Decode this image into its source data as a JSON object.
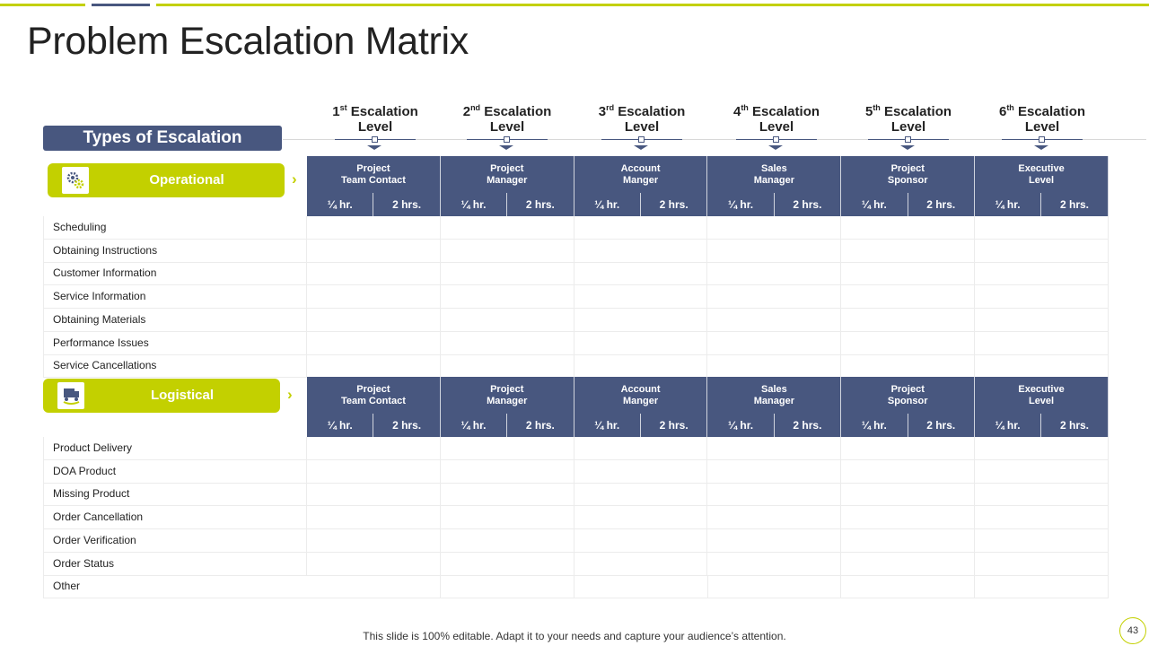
{
  "title": "Problem Escalation Matrix",
  "colors": {
    "accent": "#c3d000",
    "navy": "#48577f",
    "grid": "#ececec"
  },
  "levels": [
    {
      "num": "1",
      "sup": "st",
      "line1": "Escalation",
      "line2": "Level"
    },
    {
      "num": "2",
      "sup": "nd",
      "line1": "Escalation",
      "line2": "Level"
    },
    {
      "num": "3",
      "sup": "rd",
      "line1": "Escalation",
      "line2": "Level"
    },
    {
      "num": "4",
      "sup": "th",
      "line1": "Escalation",
      "line2": "Level"
    },
    {
      "num": "5",
      "sup": "th",
      "line1": "Escalation",
      "line2": "Level"
    },
    {
      "num": "6",
      "sup": "th",
      "line1": "Escalation",
      "line2": "Level"
    }
  ],
  "types_label": "Types of Escalation",
  "roles": [
    {
      "line1": "Project",
      "line2": "Team Contact"
    },
    {
      "line1": "Project",
      "line2": "Manager"
    },
    {
      "line1": "Account",
      "line2": "Manger"
    },
    {
      "line1": "Sales",
      "line2": "Manager"
    },
    {
      "line1": "Project",
      "line2": "Sponsor"
    },
    {
      "line1": "Executive",
      "line2": "Level"
    }
  ],
  "time_labels": [
    "¼ hr.",
    "2 hrs."
  ],
  "sections": [
    {
      "name": "Operational",
      "icon": "gears-icon",
      "rows": [
        "Scheduling",
        "Obtaining Instructions",
        "Customer Information",
        "Service Information",
        "Obtaining Materials",
        "Performance Issues",
        "Service Cancellations"
      ]
    },
    {
      "name": "Logistical",
      "icon": "delivery-truck-icon",
      "rows": [
        "Product Delivery",
        "DOA Product",
        "Missing Product",
        "Order Cancellation",
        "Order Verification",
        "Order Status",
        "Other"
      ]
    }
  ],
  "footer": "This slide is 100% editable. Adapt it to your needs and capture your audience’s attention.",
  "page_number": "43"
}
